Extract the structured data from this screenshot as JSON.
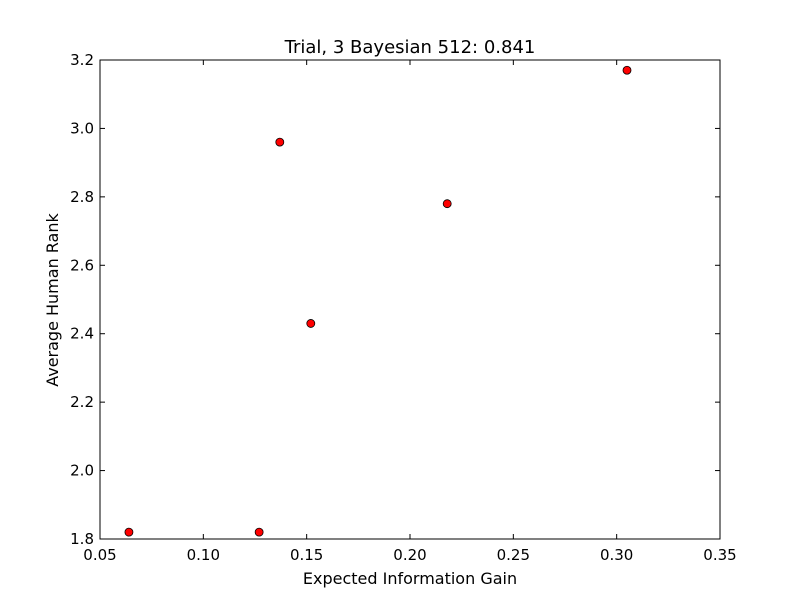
{
  "chart_data": {
    "type": "scatter",
    "title": "Trial, 3 Bayesian 512: 0.841",
    "xlabel": "Expected Information Gain",
    "ylabel": "Average Human Rank",
    "xlim": [
      0.05,
      0.35
    ],
    "ylim": [
      1.8,
      3.2
    ],
    "xticks": [
      "0.05",
      "0.10",
      "0.15",
      "0.20",
      "0.25",
      "0.30",
      "0.35"
    ],
    "yticks": [
      "1.8",
      "2.0",
      "2.2",
      "2.4",
      "2.6",
      "2.8",
      "3.0",
      "3.2"
    ],
    "grid": false,
    "marker_color": "#ff0000",
    "points": [
      {
        "x": 0.064,
        "y": 1.82
      },
      {
        "x": 0.127,
        "y": 1.82
      },
      {
        "x": 0.137,
        "y": 2.96
      },
      {
        "x": 0.152,
        "y": 2.43
      },
      {
        "x": 0.218,
        "y": 2.78
      },
      {
        "x": 0.305,
        "y": 3.17
      }
    ]
  }
}
